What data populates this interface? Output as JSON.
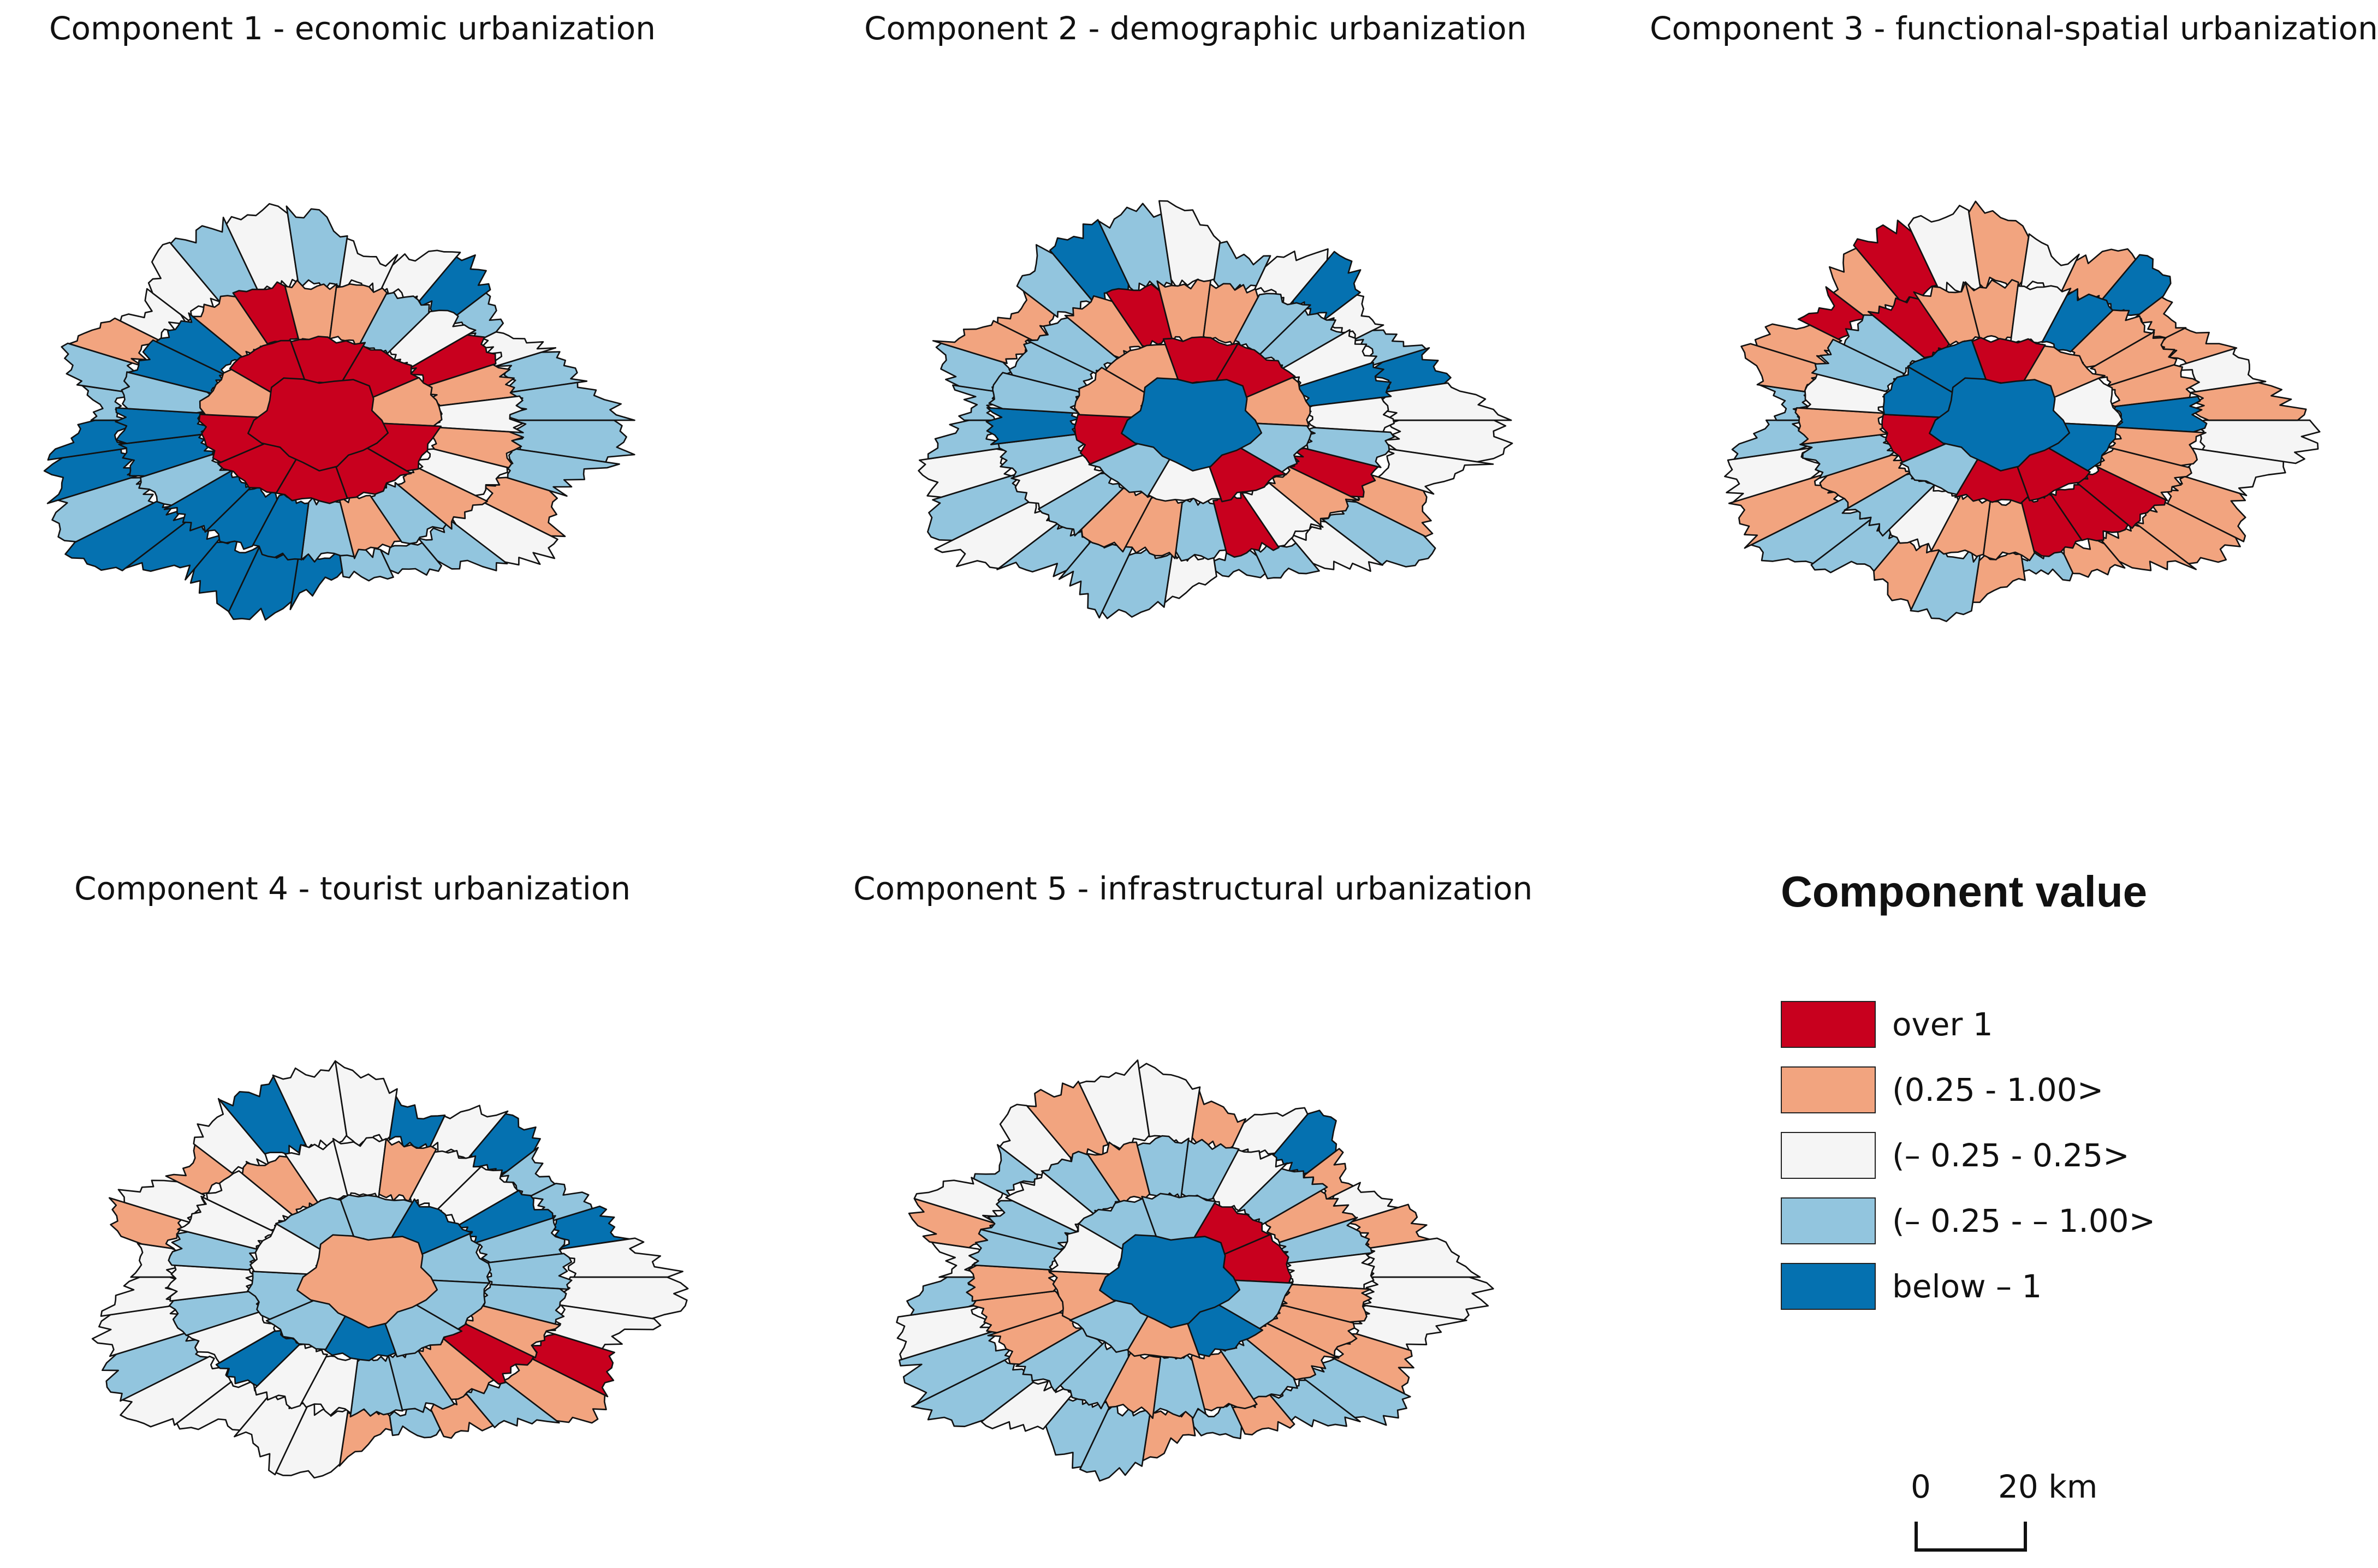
{
  "maps": [
    {
      "title": "Component 1 - economic urbanization",
      "center": "over_1",
      "ring_inner": [
        "over_1",
        "over_1",
        "over_1",
        "over_1",
        "low_pos",
        "over_1",
        "over_1",
        "over_1",
        "low_pos",
        "over_1"
      ],
      "ring_mid": [
        "mid",
        "low_pos",
        "low_neg",
        "low_pos",
        "low_neg",
        "below",
        "below",
        "below",
        "low_neg",
        "below",
        "below",
        "low_neg",
        "below",
        "below",
        "low_pos",
        "over_1",
        "low_pos",
        "low_pos",
        "low_neg",
        "mid",
        "over_1",
        "low_pos",
        "mid",
        "low_pos"
      ],
      "ring_outer": [
        "low_neg",
        "low_neg",
        "low_pos",
        "mid",
        "low_neg",
        "low_neg",
        "low_neg",
        "below",
        "below",
        "below",
        "below",
        "below",
        "low_neg",
        "below",
        "below",
        "low_neg",
        "low_neg",
        "low_pos",
        "mid",
        "mid",
        "low_neg",
        "mid",
        "low_neg",
        "mid",
        "mid",
        "below",
        "low_neg",
        "mid",
        "low_neg",
        "low_neg"
      ]
    },
    {
      "title": "Component 2 - demographic urbanization",
      "center": "below",
      "ring_inner": [
        "over_1",
        "mid",
        "low_neg",
        "over_1",
        "low_pos",
        "low_pos",
        "over_1",
        "over_1",
        "low_pos",
        "low_neg"
      ],
      "ring_mid": [
        "over_1",
        "low_pos",
        "mid",
        "over_1",
        "low_neg",
        "low_pos",
        "low_pos",
        "low_neg",
        "mid",
        "low_neg",
        "below",
        "low_neg",
        "low_neg",
        "low_neg",
        "low_pos",
        "over_1",
        "low_pos",
        "low_pos",
        "low_neg",
        "low_neg",
        "mid",
        "below",
        "mid",
        "low_neg"
      ],
      "ring_outer": [
        "mid",
        "mid",
        "low_pos",
        "low_neg",
        "mid",
        "low_neg",
        "low_neg",
        "mid",
        "low_neg",
        "low_neg",
        "low_neg",
        "mid",
        "low_neg",
        "mid",
        "low_neg",
        "low_neg",
        "low_neg",
        "low_pos",
        "low_pos",
        "low_neg",
        "below",
        "low_neg",
        "mid",
        "low_neg",
        "mid",
        "below",
        "mid",
        "low_neg",
        "below",
        "mid"
      ]
    },
    {
      "title": "Component 3 - functional-spatial urbanization",
      "center": "below",
      "ring_inner": [
        "over_1",
        "over_1",
        "low_neg",
        "over_1",
        "below",
        "below",
        "over_1",
        "low_pos",
        "mid",
        "below"
      ],
      "ring_mid": [
        "low_pos",
        "over_1",
        "over_1",
        "over_1",
        "low_pos",
        "low_pos",
        "mid",
        "low_neg",
        "low_pos",
        "low_neg",
        "low_pos",
        "mid",
        "low_neg",
        "low_neg",
        "over_1",
        "low_pos",
        "low_pos",
        "mid",
        "below",
        "low_pos",
        "low_pos",
        "low_pos",
        "below",
        "low_pos"
      ],
      "ring_outer": [
        "mid",
        "mid",
        "low_pos",
        "low_pos",
        "low_pos",
        "low_pos",
        "low_neg",
        "low_pos",
        "low_neg",
        "low_pos",
        "low_neg",
        "low_neg",
        "low_pos",
        "mid",
        "low_neg",
        "low_neg",
        "low_pos",
        "low_pos",
        "over_1",
        "low_pos",
        "over_1",
        "mid",
        "low_pos",
        "mid",
        "low_pos",
        "below",
        "low_pos",
        "low_pos",
        "mid",
        "low_pos"
      ]
    },
    {
      "title": "Component 4 - tourist urbanization",
      "center": "low_pos",
      "ring_inner": [
        "low_neg",
        "below",
        "low_neg",
        "low_neg",
        "mid",
        "low_neg",
        "low_neg",
        "below",
        "low_neg",
        "low_neg"
      ],
      "ring_mid": [
        "low_pos",
        "over_1",
        "low_pos",
        "low_neg",
        "low_neg",
        "mid",
        "mid",
        "below",
        "mid",
        "low_neg",
        "mid",
        "low_neg",
        "mid",
        "mid",
        "low_pos",
        "mid",
        "mid",
        "low_pos",
        "mid",
        "mid",
        "below",
        "low_neg",
        "low_neg",
        "low_neg"
      ],
      "ring_outer": [
        "mid",
        "mid",
        "over_1",
        "low_pos",
        "low_neg",
        "low_pos",
        "low_neg",
        "low_pos",
        "mid",
        "mid",
        "mid",
        "mid",
        "low_neg",
        "mid",
        "mid",
        "mid",
        "low_pos",
        "mid",
        "low_pos",
        "mid",
        "below",
        "mid",
        "mid",
        "below",
        "mid",
        "below",
        "low_neg",
        "low_neg",
        "below",
        "mid"
      ]
    },
    {
      "title": "Component 5 - infrastructural urbanization",
      "center": "below",
      "ring_inner": [
        "below",
        "low_pos",
        "low_neg",
        "low_pos",
        "mid",
        "low_neg",
        "low_neg",
        "over_1",
        "over_1",
        "low_neg"
      ],
      "ring_mid": [
        "low_pos",
        "low_pos",
        "low_neg",
        "low_pos",
        "low_neg",
        "low_pos",
        "low_neg",
        "low_neg",
        "low_pos",
        "low_pos",
        "low_pos",
        "low_neg",
        "low_neg",
        "mid",
        "low_neg",
        "low_pos",
        "low_neg",
        "low_neg",
        "mid",
        "low_neg",
        "low_pos",
        "low_neg",
        "mid",
        "low_pos"
      ],
      "ring_outer": [
        "mid",
        "mid",
        "low_pos",
        "low_neg",
        "low_neg",
        "low_pos",
        "low_neg",
        "low_pos",
        "low_neg",
        "low_neg",
        "mid",
        "low_neg",
        "low_neg",
        "mid",
        "low_neg",
        "mid",
        "low_pos",
        "mid",
        "low_neg",
        "mid",
        "low_pos",
        "mid",
        "mid",
        "low_pos",
        "mid",
        "below",
        "low_pos",
        "mid",
        "low_pos",
        "mid"
      ]
    }
  ],
  "legend": {
    "title": "Component value",
    "items": [
      {
        "key": "over_1",
        "label": "over 1",
        "color": "#c8001e"
      },
      {
        "key": "low_pos",
        "label": "(0.25 - 1.00>",
        "color": "#f2a47f"
      },
      {
        "key": "mid",
        "label": "(– 0.25 - 0.25>",
        "color": "#f5f5f5"
      },
      {
        "key": "low_neg",
        "label": "(– 0.25 - – 1.00>",
        "color": "#92c5de"
      },
      {
        "key": "below",
        "label": "below – 1",
        "color": "#0571b0"
      }
    ]
  },
  "scale_bar": {
    "start": "0",
    "end": "20 km"
  }
}
